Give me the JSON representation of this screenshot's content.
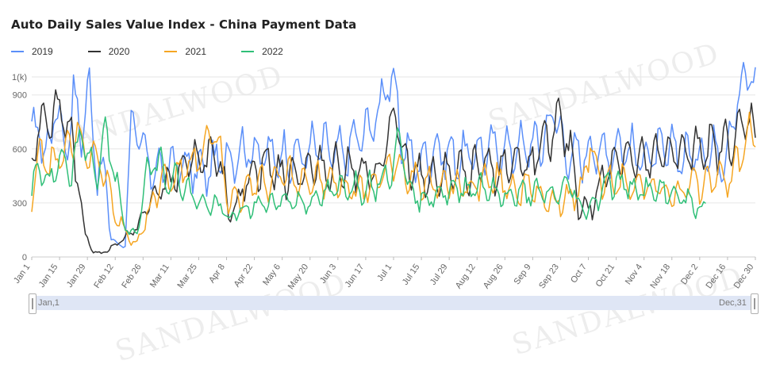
{
  "title": "Auto Daily Sales Value Index - China Payment Data",
  "watermark_text": "SANDALWOOD",
  "legend": [
    {
      "name": "2019",
      "color": "#5b8ff9"
    },
    {
      "name": "2020",
      "color": "#333333"
    },
    {
      "name": "2021",
      "color": "#f5a623"
    },
    {
      "name": "2022",
      "color": "#30bf78"
    }
  ],
  "slider": {
    "start_label": "Jan,1",
    "end_label": "Dec,31"
  },
  "chart_data": {
    "type": "line",
    "ylabel": "1(k)",
    "ylim": [
      0,
      1000
    ],
    "yticks": [
      0,
      300,
      600,
      900
    ],
    "y_unit_label": "1(k)",
    "xticks": [
      "Jan 1",
      "Jan 15",
      "Jan 29",
      "Feb 12",
      "Feb 26",
      "Mar 11",
      "Mar 25",
      "Apr 8",
      "Apr 22",
      "May 6",
      "May 20",
      "Jun 3",
      "Jun 17",
      "Jul 1",
      "Jul 15",
      "Jul 29",
      "Aug 12",
      "Aug 26",
      "Sep 9",
      "Sep 23",
      "Oct 7",
      "Oct 21",
      "Nov 4",
      "Nov 18",
      "Dec 2",
      "Dec 16",
      "Dec 30"
    ],
    "xtick_days": [
      1,
      15,
      29,
      43,
      57,
      71,
      85,
      99,
      113,
      127,
      141,
      155,
      169,
      183,
      197,
      211,
      225,
      239,
      253,
      267,
      281,
      295,
      309,
      323,
      337,
      351,
      365
    ],
    "grid": true,
    "series": [
      {
        "name": "2019",
        "color": "#5b8ff9",
        "keypoints": [
          [
            1,
            620
          ],
          [
            4,
            780
          ],
          [
            8,
            520
          ],
          [
            13,
            860
          ],
          [
            18,
            600
          ],
          [
            22,
            880
          ],
          [
            26,
            700
          ],
          [
            30,
            930
          ],
          [
            34,
            480
          ],
          [
            38,
            430
          ],
          [
            41,
            120
          ],
          [
            44,
            60
          ],
          [
            48,
            80
          ],
          [
            51,
            740
          ],
          [
            53,
            720
          ],
          [
            56,
            600
          ],
          [
            60,
            520
          ],
          [
            64,
            480
          ],
          [
            72,
            520
          ],
          [
            80,
            500
          ],
          [
            88,
            470
          ],
          [
            96,
            540
          ],
          [
            104,
            580
          ],
          [
            112,
            600
          ],
          [
            120,
            560
          ],
          [
            128,
            560
          ],
          [
            136,
            560
          ],
          [
            144,
            620
          ],
          [
            152,
            590
          ],
          [
            158,
            560
          ],
          [
            164,
            660
          ],
          [
            170,
            700
          ],
          [
            176,
            820
          ],
          [
            180,
            1010
          ],
          [
            184,
            880
          ],
          [
            188,
            600
          ],
          [
            196,
            520
          ],
          [
            204,
            600
          ],
          [
            212,
            560
          ],
          [
            220,
            560
          ],
          [
            228,
            600
          ],
          [
            236,
            600
          ],
          [
            244,
            600
          ],
          [
            252,
            620
          ],
          [
            258,
            640
          ],
          [
            264,
            820
          ],
          [
            270,
            560
          ],
          [
            276,
            560
          ],
          [
            282,
            600
          ],
          [
            290,
            580
          ],
          [
            298,
            620
          ],
          [
            306,
            560
          ],
          [
            314,
            560
          ],
          [
            322,
            600
          ],
          [
            330,
            560
          ],
          [
            338,
            580
          ],
          [
            344,
            600
          ],
          [
            350,
            560
          ],
          [
            356,
            900
          ],
          [
            360,
            960
          ],
          [
            363,
            1070
          ],
          [
            365,
            940
          ]
        ],
        "amplitude": 200
      },
      {
        "name": "2020",
        "color": "#333333",
        "keypoints": [
          [
            1,
            560
          ],
          [
            5,
            760
          ],
          [
            10,
            780
          ],
          [
            14,
            830
          ],
          [
            17,
            800
          ],
          [
            20,
            720
          ],
          [
            24,
            450
          ],
          [
            28,
            120
          ],
          [
            32,
            30
          ],
          [
            36,
            20
          ],
          [
            40,
            40
          ],
          [
            44,
            80
          ],
          [
            48,
            110
          ],
          [
            52,
            140
          ],
          [
            56,
            200
          ],
          [
            60,
            300
          ],
          [
            64,
            350
          ],
          [
            68,
            400
          ],
          [
            72,
            440
          ],
          [
            80,
            510
          ],
          [
            88,
            560
          ],
          [
            96,
            500
          ],
          [
            100,
            260
          ],
          [
            104,
            300
          ],
          [
            112,
            480
          ],
          [
            120,
            520
          ],
          [
            128,
            440
          ],
          [
            136,
            480
          ],
          [
            144,
            500
          ],
          [
            150,
            480
          ],
          [
            156,
            520
          ],
          [
            162,
            500
          ],
          [
            170,
            440
          ],
          [
            176,
            480
          ],
          [
            180,
            660
          ],
          [
            184,
            800
          ],
          [
            188,
            520
          ],
          [
            196,
            460
          ],
          [
            204,
            420
          ],
          [
            212,
            480
          ],
          [
            220,
            460
          ],
          [
            228,
            500
          ],
          [
            236,
            480
          ],
          [
            244,
            540
          ],
          [
            252,
            520
          ],
          [
            260,
            640
          ],
          [
            266,
            760
          ],
          [
            272,
            600
          ],
          [
            276,
            300
          ],
          [
            280,
            260
          ],
          [
            284,
            300
          ],
          [
            290,
            500
          ],
          [
            298,
            580
          ],
          [
            306,
            520
          ],
          [
            314,
            540
          ],
          [
            322,
            600
          ],
          [
            330,
            560
          ],
          [
            338,
            620
          ],
          [
            346,
            600
          ],
          [
            352,
            640
          ],
          [
            358,
            700
          ],
          [
            362,
            800
          ],
          [
            365,
            640
          ]
        ],
        "amplitude": 180
      },
      {
        "name": "2021",
        "color": "#f5a623",
        "keypoints": [
          [
            1,
            340
          ],
          [
            5,
            600
          ],
          [
            10,
            480
          ],
          [
            15,
            560
          ],
          [
            20,
            600
          ],
          [
            24,
            700
          ],
          [
            28,
            560
          ],
          [
            32,
            600
          ],
          [
            36,
            500
          ],
          [
            40,
            400
          ],
          [
            44,
            200
          ],
          [
            48,
            160
          ],
          [
            51,
            80
          ],
          [
            54,
            80
          ],
          [
            58,
            200
          ],
          [
            62,
            320
          ],
          [
            66,
            420
          ],
          [
            72,
            440
          ],
          [
            80,
            500
          ],
          [
            88,
            580
          ],
          [
            92,
            700
          ],
          [
            96,
            560
          ],
          [
            100,
            300
          ],
          [
            104,
            330
          ],
          [
            112,
            400
          ],
          [
            120,
            420
          ],
          [
            128,
            460
          ],
          [
            136,
            440
          ],
          [
            144,
            420
          ],
          [
            152,
            420
          ],
          [
            160,
            380
          ],
          [
            168,
            380
          ],
          [
            176,
            420
          ],
          [
            182,
            520
          ],
          [
            188,
            480
          ],
          [
            196,
            440
          ],
          [
            204,
            400
          ],
          [
            212,
            400
          ],
          [
            220,
            380
          ],
          [
            228,
            420
          ],
          [
            236,
            420
          ],
          [
            244,
            380
          ],
          [
            252,
            380
          ],
          [
            260,
            320
          ],
          [
            266,
            300
          ],
          [
            272,
            340
          ],
          [
            278,
            360
          ],
          [
            282,
            660
          ],
          [
            286,
            440
          ],
          [
            292,
            400
          ],
          [
            300,
            420
          ],
          [
            308,
            400
          ],
          [
            316,
            380
          ],
          [
            324,
            340
          ],
          [
            332,
            380
          ],
          [
            340,
            420
          ],
          [
            346,
            440
          ],
          [
            352,
            440
          ],
          [
            358,
            560
          ],
          [
            362,
            720
          ],
          [
            365,
            660
          ]
        ],
        "amplitude": 160
      },
      {
        "name": "2022",
        "color": "#30bf78",
        "keypoints": [
          [
            1,
            360
          ],
          [
            5,
            520
          ],
          [
            10,
            400
          ],
          [
            15,
            540
          ],
          [
            20,
            440
          ],
          [
            26,
            680
          ],
          [
            30,
            540
          ],
          [
            34,
            460
          ],
          [
            38,
            700
          ],
          [
            42,
            500
          ],
          [
            46,
            280
          ],
          [
            50,
            120
          ],
          [
            54,
            140
          ],
          [
            58,
            420
          ],
          [
            62,
            520
          ],
          [
            66,
            520
          ],
          [
            70,
            420
          ],
          [
            74,
            440
          ],
          [
            80,
            360
          ],
          [
            86,
            300
          ],
          [
            92,
            280
          ],
          [
            96,
            300
          ],
          [
            100,
            200
          ],
          [
            104,
            240
          ],
          [
            112,
            280
          ],
          [
            120,
            300
          ],
          [
            128,
            320
          ],
          [
            136,
            300
          ],
          [
            144,
            320
          ],
          [
            152,
            360
          ],
          [
            160,
            400
          ],
          [
            168,
            380
          ],
          [
            176,
            420
          ],
          [
            182,
            500
          ],
          [
            186,
            680
          ],
          [
            190,
            420
          ],
          [
            196,
            320
          ],
          [
            204,
            360
          ],
          [
            212,
            360
          ],
          [
            220,
            380
          ],
          [
            228,
            400
          ],
          [
            236,
            340
          ],
          [
            244,
            340
          ],
          [
            252,
            360
          ],
          [
            260,
            340
          ],
          [
            268,
            360
          ],
          [
            272,
            420
          ],
          [
            276,
            280
          ],
          [
            280,
            260
          ],
          [
            284,
            300
          ],
          [
            290,
            420
          ],
          [
            298,
            400
          ],
          [
            306,
            380
          ],
          [
            314,
            360
          ],
          [
            322,
            360
          ],
          [
            330,
            320
          ],
          [
            336,
            280
          ],
          [
            340,
            260
          ]
        ],
        "amplitude": 140
      }
    ]
  }
}
